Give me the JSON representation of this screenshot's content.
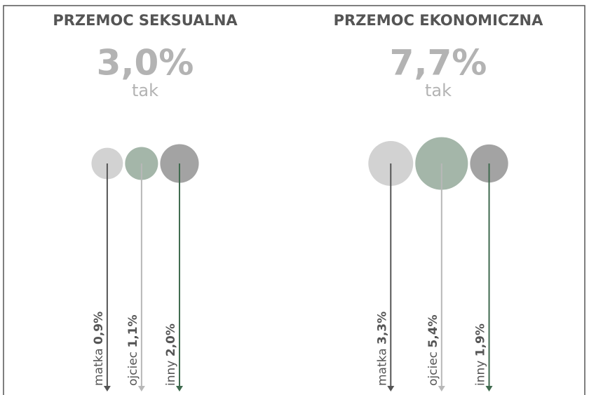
{
  "chart_data": [
    {
      "type": "bubble",
      "title": "PRZEMOC SEKSUALNA",
      "total": {
        "value": 3.0,
        "label": "3,0%"
      },
      "subtitle": "tak",
      "categories": [
        "matka",
        "ojciec",
        "inny"
      ],
      "values": [
        0.9,
        1.1,
        2.0
      ],
      "value_labels": [
        "0,9%",
        "1,1%",
        "2,0%"
      ],
      "colors": [
        "#d2d2d2",
        "#a4b6a9",
        "#a3a3a3"
      ],
      "arrow_colors": [
        "#555555",
        "#b8b8b8",
        "#3f6a4e"
      ]
    },
    {
      "type": "bubble",
      "title": "PRZEMOC EKONOMICZNA",
      "total": {
        "value": 7.7,
        "label": "7,7%"
      },
      "subtitle": "tak",
      "categories": [
        "matka",
        "ojciec",
        "inny"
      ],
      "values": [
        3.3,
        5.4,
        1.9
      ],
      "value_labels": [
        "3,3%",
        "5,4%",
        "1,9%"
      ],
      "colors": [
        "#d2d2d2",
        "#a4b6a9",
        "#a3a3a3"
      ],
      "arrow_colors": [
        "#555555",
        "#b8b8b8",
        "#3f6a4e"
      ]
    }
  ]
}
